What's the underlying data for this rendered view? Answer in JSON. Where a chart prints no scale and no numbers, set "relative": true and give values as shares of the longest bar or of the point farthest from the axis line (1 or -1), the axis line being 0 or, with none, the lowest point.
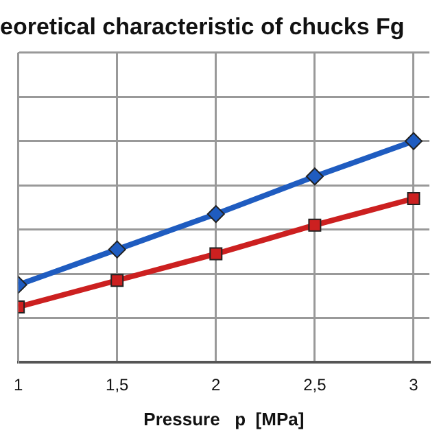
{
  "chart_data": {
    "type": "line",
    "title": "eoretical characteristic of chucks Fg",
    "xlabel": "Pressure   p  [MPa]",
    "relative": true,
    "x": [
      1,
      1.5,
      2,
      2.5,
      3
    ],
    "xlim": [
      1,
      3.08
    ],
    "xticks": [
      1,
      {
        "value": 1.5,
        "label": "1,5"
      },
      2,
      {
        "value": 2.5,
        "label": "2,5"
      },
      3
    ],
    "series": [
      {
        "color": "#1f5cc0",
        "marker": "diamond",
        "values": [
          0.35,
          0.51,
          0.67,
          0.84,
          1
        ]
      },
      {
        "color": "#cc2020",
        "marker": "square",
        "values": [
          0.25,
          0.37,
          0.49,
          0.62,
          0.74
        ]
      }
    ],
    "grid": true,
    "legend": false,
    "line_style": "solid"
  }
}
